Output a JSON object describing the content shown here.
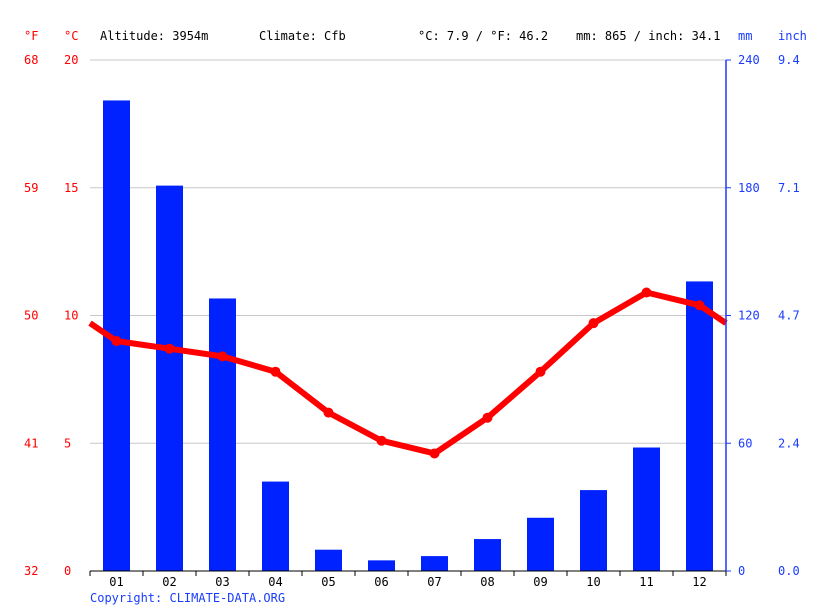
{
  "header": {
    "unit_f": "°F",
    "unit_c": "°C",
    "altitude": "Altitude: 3954m",
    "climate": "Climate: Cfb",
    "temp_avg": "°C: 7.9 / °F: 46.2",
    "precip_total": "mm: 865 / inch: 34.1",
    "unit_mm": "mm",
    "unit_inch": "inch"
  },
  "footer": {
    "copyright": "Copyright: CLIMATE-DATA.ORG"
  },
  "colors": {
    "temperature": "#ff0000",
    "precipitation": "#0022ff",
    "grid": "#c8c8c8"
  },
  "chart_data": {
    "type": "bar",
    "categories": [
      "01",
      "02",
      "03",
      "04",
      "05",
      "06",
      "07",
      "08",
      "09",
      "10",
      "11",
      "12"
    ],
    "series": [
      {
        "kind": "bar",
        "axis": "mm",
        "values": [
          221,
          181,
          128,
          42,
          10,
          5,
          7,
          15,
          25,
          38,
          58,
          136
        ]
      },
      {
        "kind": "line",
        "axis": "celsius",
        "values": [
          9.0,
          8.7,
          8.4,
          7.8,
          6.2,
          5.1,
          4.6,
          6.0,
          7.8,
          9.7,
          10.9,
          10.4
        ]
      }
    ],
    "line_start_celsius": 9.7,
    "line_end_celsius": 9.7,
    "axes": {
      "fahrenheit_ticks": [
        "68",
        "59",
        "50",
        "41",
        "32"
      ],
      "celsius_ticks": [
        "20",
        "15",
        "10",
        "5",
        "0"
      ],
      "mm_ticks": [
        "240",
        "180",
        "120",
        "60",
        "0"
      ],
      "inch_ticks": [
        "9.4",
        "7.1",
        "4.7",
        "2.4",
        "0.0"
      ],
      "celsius_range": [
        0,
        20
      ],
      "mm_range": [
        0,
        240
      ]
    },
    "grid": true
  }
}
